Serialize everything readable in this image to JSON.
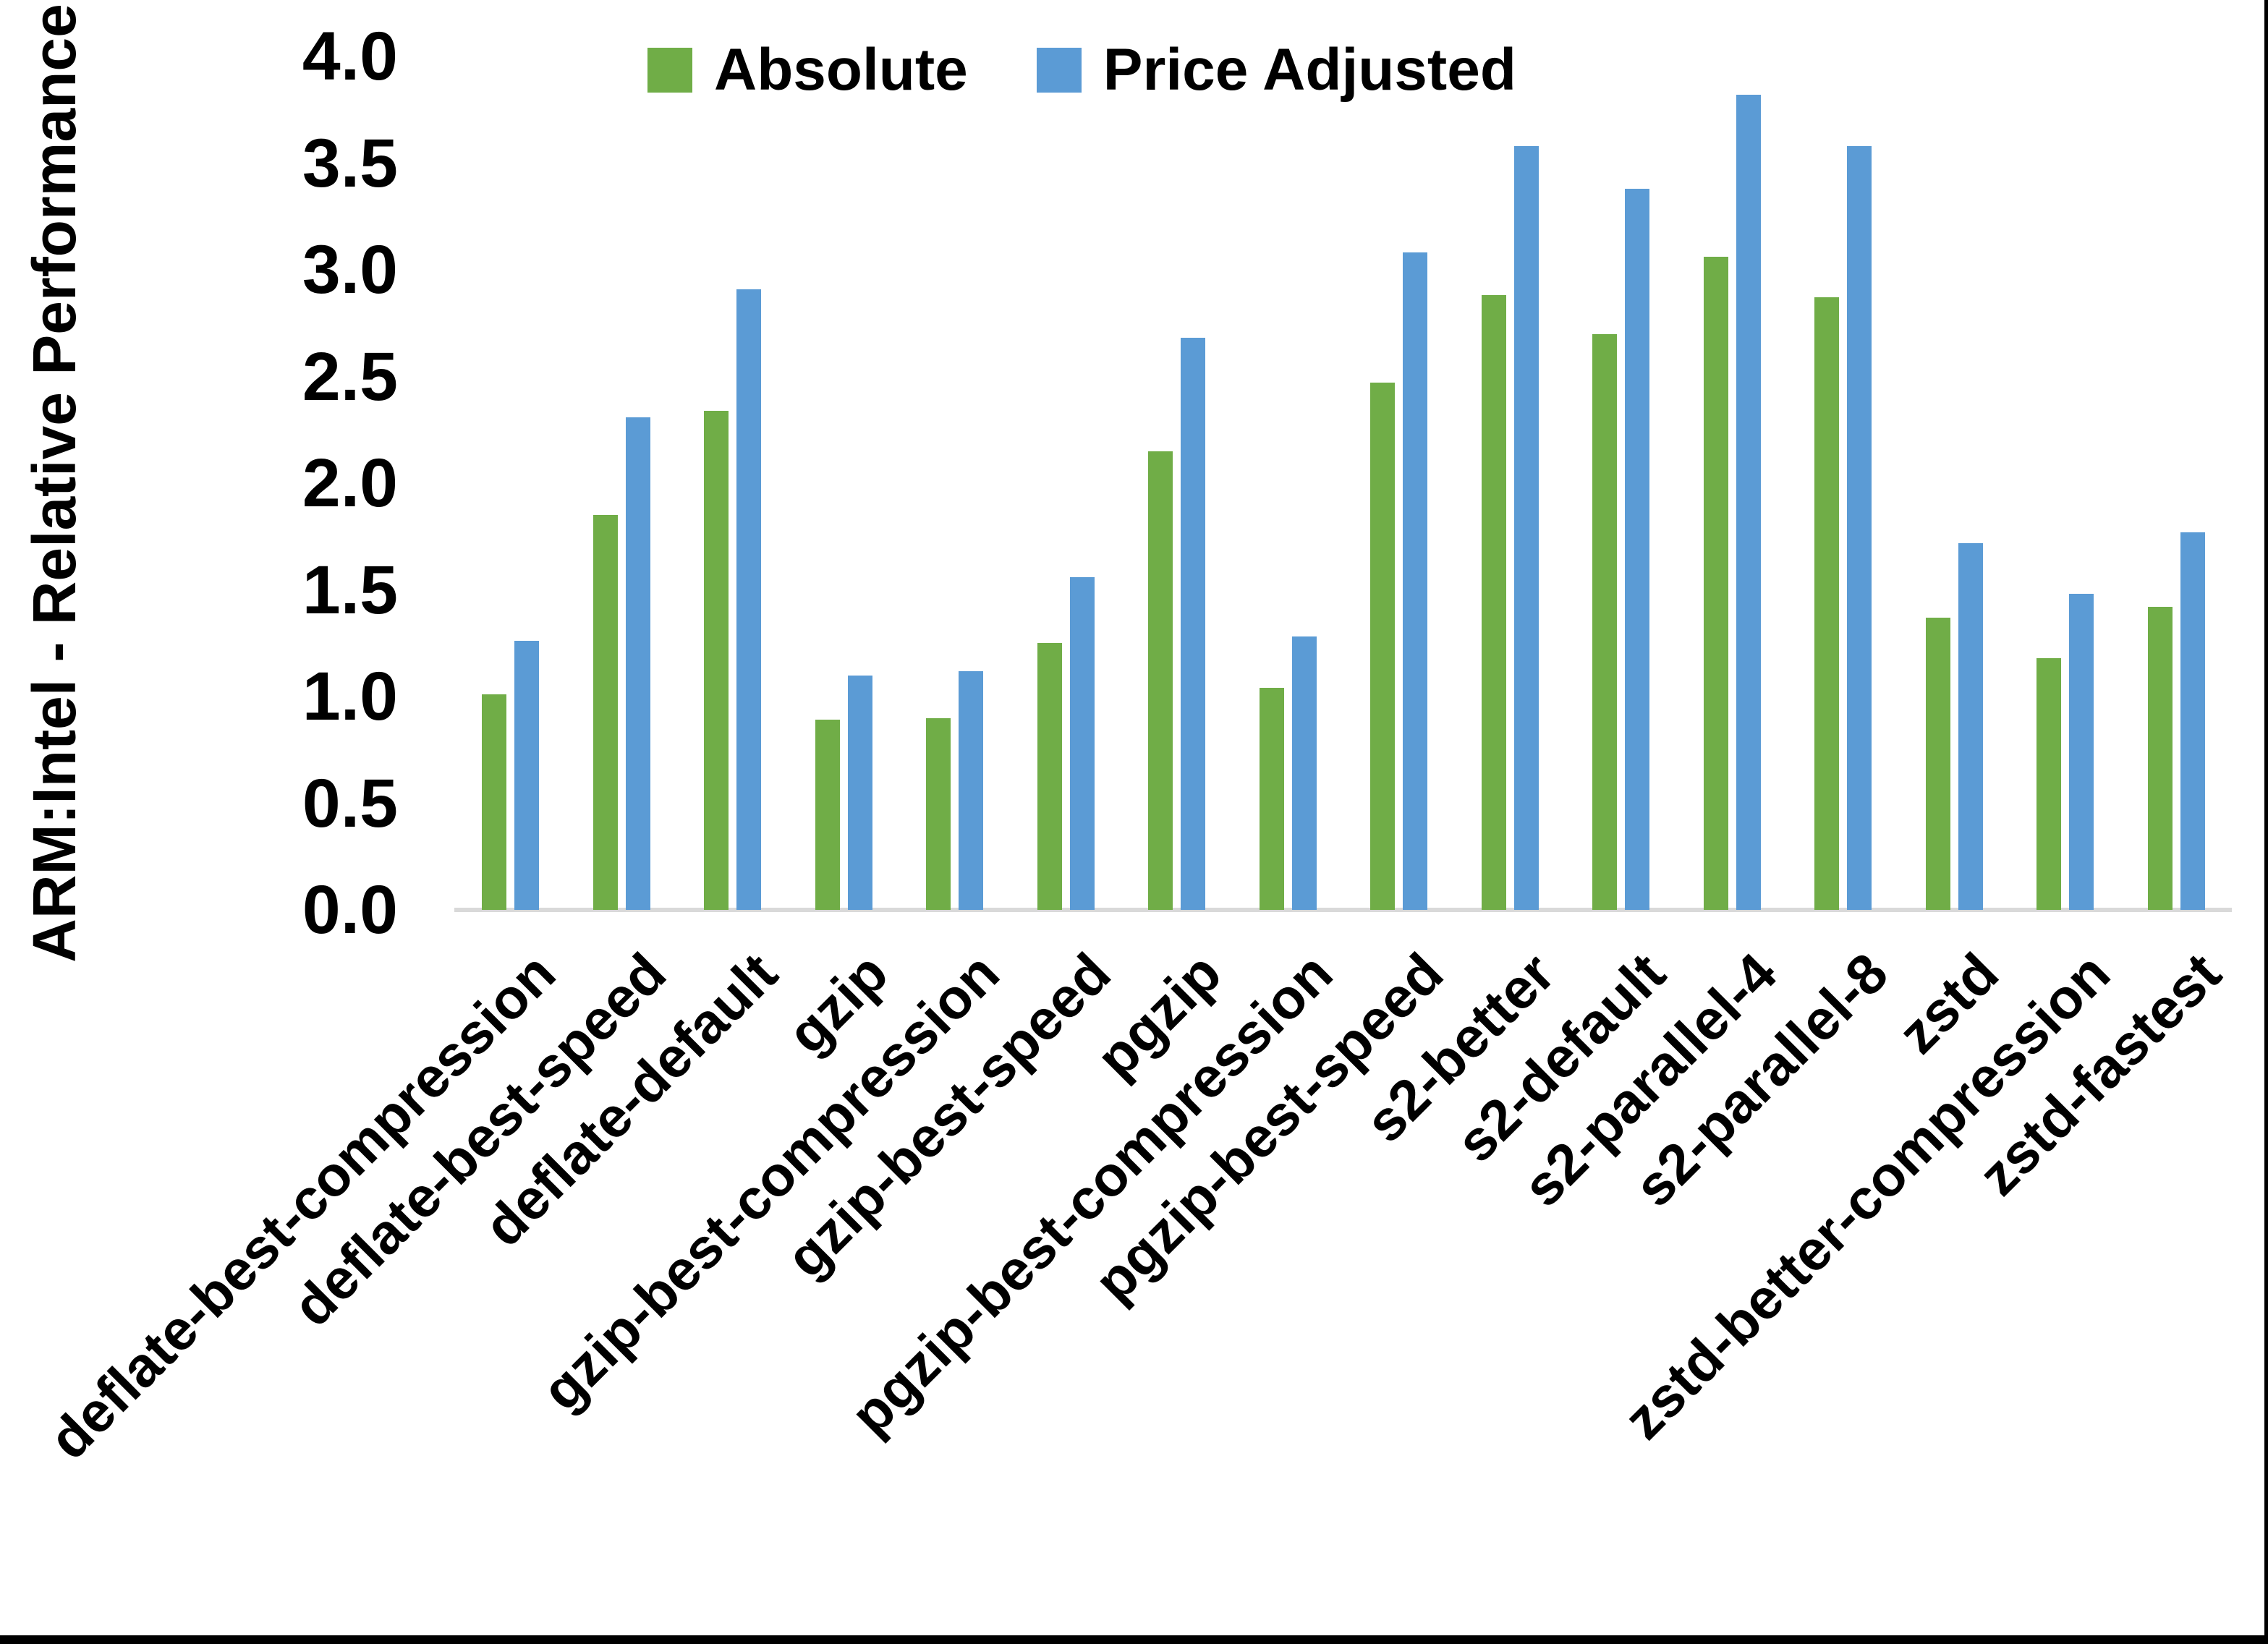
{
  "chart": {
    "legend": [
      "Absolute",
      "Price Adjusted"
    ]
  },
  "chart_data": {
    "type": "bar",
    "title": "",
    "xlabel": "",
    "ylabel": "ARM:Intel - Relative Performance",
    "ylim": [
      0.0,
      4.0
    ],
    "ytick_step": 0.5,
    "ytick_labels": [
      "0.0",
      "0.5",
      "1.0",
      "1.5",
      "2.0",
      "2.5",
      "3.0",
      "3.5",
      "4.0"
    ],
    "grid": false,
    "legend_position": "top-center",
    "background_color": "#ffffff",
    "axis_line_color": "#d9d9d9",
    "categories": [
      "deflate-best-compression",
      "deflate-best-speed",
      "deflate-default",
      "gzip",
      "gzip-best-compression",
      "gzip-best-speed",
      "pgzip",
      "pgzip-best-compression",
      "pgzip-best-speed",
      "s2-better",
      "s2-default",
      "s2-parallel-4",
      "s2-parallel-8",
      "zstd",
      "zstd-better-compression",
      "zstd-fastest"
    ],
    "series": [
      {
        "name": "Absolute",
        "color": "#70AD47",
        "values": [
          1.01,
          1.85,
          2.34,
          0.89,
          0.9,
          1.25,
          2.15,
          1.04,
          2.47,
          2.88,
          2.7,
          3.06,
          2.87,
          1.37,
          1.18,
          1.42
        ]
      },
      {
        "name": "Price Adjusted",
        "color": "#5B9BD5",
        "values": [
          1.26,
          2.31,
          2.91,
          1.1,
          1.12,
          1.56,
          2.68,
          1.28,
          3.08,
          3.58,
          3.38,
          3.82,
          3.58,
          1.72,
          1.48,
          1.77
        ]
      }
    ]
  }
}
